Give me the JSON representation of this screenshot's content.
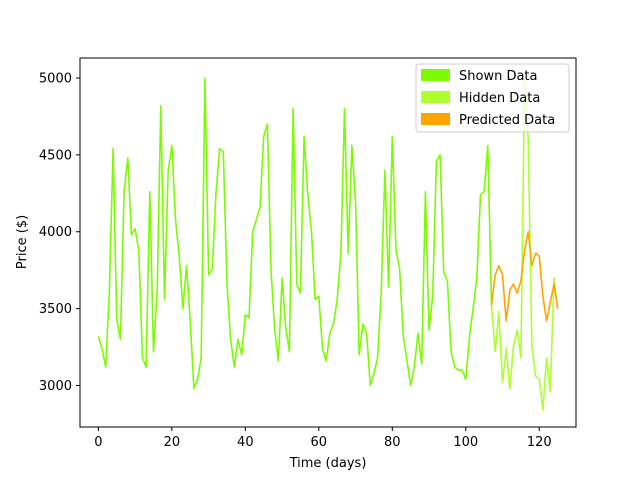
{
  "chart_data": {
    "type": "line",
    "title": "",
    "xlabel": "Time (days)",
    "ylabel": "Price ($)",
    "xlim": [
      -5,
      130
    ],
    "ylim": [
      2730,
      5130
    ],
    "xticks": [
      0,
      20,
      40,
      60,
      80,
      100,
      120
    ],
    "yticks": [
      3000,
      3500,
      4000,
      4500,
      5000
    ],
    "legend_position": "top-right",
    "grid": false,
    "series": [
      {
        "name": "Shown Data",
        "color": "#7cfc00",
        "x": [
          0,
          1,
          2,
          3,
          4,
          5,
          6,
          7,
          8,
          9,
          10,
          11,
          12,
          13,
          14,
          15,
          16,
          17,
          18,
          19,
          20,
          21,
          22,
          23,
          24,
          25,
          26,
          27,
          28,
          29,
          30,
          31,
          32,
          33,
          34,
          35,
          36,
          37,
          38,
          39,
          40,
          41,
          42,
          43,
          44,
          45,
          46,
          47,
          48,
          49,
          50,
          51,
          52,
          53,
          54,
          55,
          56,
          57,
          58,
          59,
          60,
          61,
          62,
          63,
          64,
          65,
          66,
          67,
          68,
          69,
          70,
          71,
          72,
          73,
          74,
          75,
          76,
          77,
          78,
          79,
          80,
          81,
          82,
          83,
          84,
          85,
          86,
          87,
          88,
          89,
          90,
          91,
          92,
          93,
          94,
          95,
          96,
          97,
          98,
          99,
          100,
          101,
          102,
          103,
          104,
          105,
          106,
          107
        ],
        "y": [
          3320,
          3240,
          3120,
          3620,
          4540,
          3430,
          3300,
          4260,
          4480,
          3980,
          4020,
          3880,
          3180,
          3120,
          4260,
          3220,
          3620,
          4820,
          3560,
          4400,
          4560,
          4080,
          3840,
          3500,
          3780,
          3420,
          2980,
          3040,
          3180,
          5000,
          3720,
          3760,
          4240,
          4540,
          4520,
          3660,
          3300,
          3120,
          3300,
          3200,
          3460,
          3440,
          4000,
          4080,
          4160,
          4620,
          4700,
          3740,
          3360,
          3160,
          3700,
          3380,
          3220,
          4800,
          3660,
          3600,
          4620,
          4240,
          4000,
          3560,
          3580,
          3240,
          3160,
          3340,
          3400,
          3560,
          3860,
          4800,
          3860,
          4560,
          4180,
          3200,
          3400,
          3340,
          3000,
          3080,
          3180,
          3620,
          4400,
          3640,
          4620,
          3880,
          3760,
          3320,
          3160,
          3000,
          3120,
          3340,
          3140,
          4260,
          3360,
          3580,
          4460,
          4500,
          3740,
          3680,
          3220,
          3120,
          3100,
          3100,
          3040,
          3320,
          3500,
          3700,
          4240,
          4260,
          4560,
          3520
        ]
      },
      {
        "name": "Hidden Data",
        "color": "#adff2f",
        "x": [
          107,
          108,
          109,
          110,
          111,
          112,
          113,
          114,
          115,
          116,
          117,
          118,
          119,
          120,
          121,
          122,
          123,
          124,
          125
        ],
        "y": [
          3520,
          3220,
          3480,
          3020,
          3240,
          2980,
          3260,
          3360,
          3180,
          5000,
          4600,
          3260,
          3060,
          3040,
          2840,
          3180,
          2960,
          3700,
          3500
        ]
      },
      {
        "name": "Predicted Data",
        "color": "#ffa500",
        "x": [
          107,
          108,
          109,
          110,
          111,
          112,
          113,
          114,
          115,
          116,
          117,
          118,
          119,
          120,
          121,
          122,
          123,
          124,
          125
        ],
        "y": [
          3520,
          3720,
          3780,
          3720,
          3420,
          3620,
          3660,
          3600,
          3680,
          3880,
          4000,
          3780,
          3860,
          3840,
          3580,
          3420,
          3540,
          3660,
          3500
        ]
      }
    ]
  }
}
